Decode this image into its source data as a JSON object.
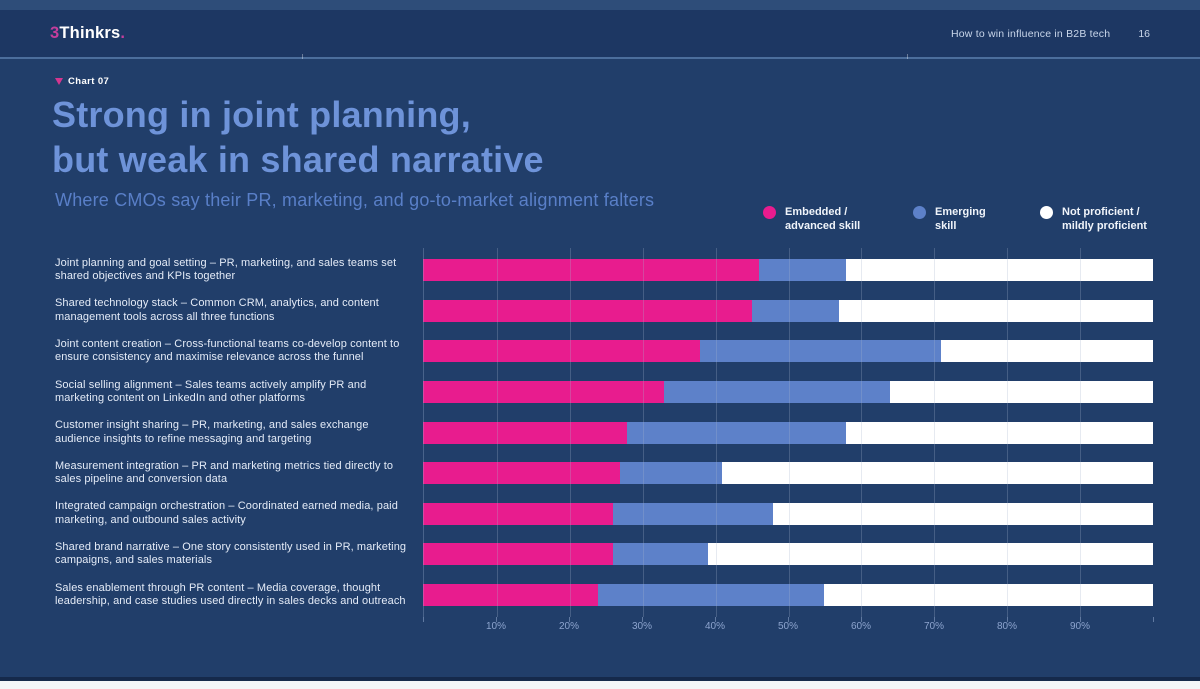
{
  "header": {
    "logo_prefix": "3",
    "logo_name": "Thinkrs",
    "logo_suffix": ".",
    "doc_title": "How to win influence in B2B tech",
    "page_number": "16"
  },
  "chart_label": "Chart 07",
  "title": {
    "line1": "Strong in joint planning,",
    "line2": "but weak in shared narrative"
  },
  "subtitle": "Where CMOs say their PR, marketing, and go-to-market alignment falters",
  "legend": [
    {
      "name": "embedded-advanced-skill",
      "line1": "Embedded /",
      "line2": "advanced skill",
      "color": "#e81c8e"
    },
    {
      "name": "emerging-skill",
      "line1": "Emerging",
      "line2": "skill",
      "color": "#5d81c9"
    },
    {
      "name": "not-proficient-mildly-proficient",
      "line1": "Not proficient /",
      "line2": "mildly proficient",
      "color": "#ffffff"
    }
  ],
  "chart_data": {
    "type": "bar",
    "orientation": "horizontal-stacked",
    "unit": "%",
    "xlim": [
      0,
      100
    ],
    "x_ticks": [
      "10%",
      "20%",
      "30%",
      "40%",
      "50%",
      "60%",
      "70%",
      "80%",
      "90%"
    ],
    "grid": true,
    "legend_position": "top-right",
    "categories": [
      "Joint planning and goal setting – PR, marketing, and sales teams set shared objectives and KPIs together",
      "Shared technology stack – Common CRM, analytics, and content management tools across all three functions",
      "Joint content creation – Cross-functional teams co-develop content to ensure consistency and maximise relevance across the funnel",
      "Social selling alignment – Sales teams actively amplify PR and marketing content on LinkedIn and other platforms",
      "Customer insight sharing – PR, marketing, and sales exchange audience insights to refine messaging and targeting",
      "Measurement integration – PR and marketing metrics tied directly to sales pipeline and conversion data",
      "Integrated campaign orchestration – Coordinated earned media, paid marketing, and outbound sales activity",
      "Shared brand narrative – One story consistently used in PR, marketing campaigns, and sales materials",
      "Sales enablement through PR content – Media coverage, thought leadership, and case studies used directly in sales decks and outreach"
    ],
    "series": [
      {
        "name": "Embedded / advanced skill",
        "color": "#e81c8e",
        "values": [
          46,
          45,
          38,
          33,
          28,
          27,
          26,
          26,
          24
        ]
      },
      {
        "name": "Emerging skill",
        "color": "#5d81c9",
        "values": [
          12,
          12,
          33,
          31,
          30,
          14,
          22,
          13,
          31
        ]
      },
      {
        "name": "Not proficient / mildly proficient",
        "color": "#ffffff",
        "values": [
          42,
          43,
          29,
          36,
          42,
          59,
          52,
          61,
          45
        ]
      }
    ]
  },
  "colors": {
    "page_top_strip": "#2e4d79",
    "header_bar": "#1d3763",
    "slide_background": "#213e6a",
    "divider": "#4c6e9c",
    "title_text": "#6e93d9",
    "subtitle_text": "#597fc8",
    "label_text": "#e4ebf7",
    "axis_text": "#8da4ce",
    "accent_pink": "#e81c8e"
  }
}
